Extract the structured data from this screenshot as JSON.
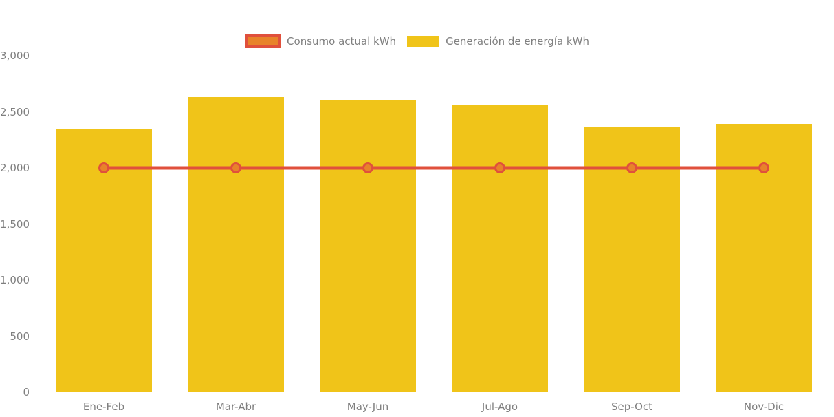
{
  "chart_data": {
    "type": "bar",
    "title": "",
    "categories": [
      "Ene-Feb",
      "Mar-Abr",
      "May-Jun",
      "Jul-Ago",
      "Sep-Oct",
      "Nov-Dic"
    ],
    "series": [
      {
        "name": "Consumo actual kWh",
        "type": "line",
        "color": "#e0503c",
        "marker_fill": "#e8832a",
        "values": [
          2000,
          2000,
          2000,
          2000,
          2000,
          2000
        ]
      },
      {
        "name": "Generación de energía kWh",
        "type": "bar",
        "color": "#f0c419",
        "values": [
          2350,
          2630,
          2600,
          2560,
          2360,
          2390
        ]
      }
    ],
    "ylim": [
      0,
      3000
    ],
    "yticks": [
      {
        "value": 0,
        "label": "0"
      },
      {
        "value": 500,
        "label": "500"
      },
      {
        "value": 1000,
        "label": "1,000"
      },
      {
        "value": 1500,
        "label": "1,500"
      },
      {
        "value": 2000,
        "label": "2,000"
      },
      {
        "value": 2500,
        "label": "2,500"
      },
      {
        "value": 3000,
        "label": "3,000"
      }
    ],
    "grid": false,
    "legend_position": "top",
    "text_color": "#7f7f7f",
    "background": "#ffffff"
  }
}
